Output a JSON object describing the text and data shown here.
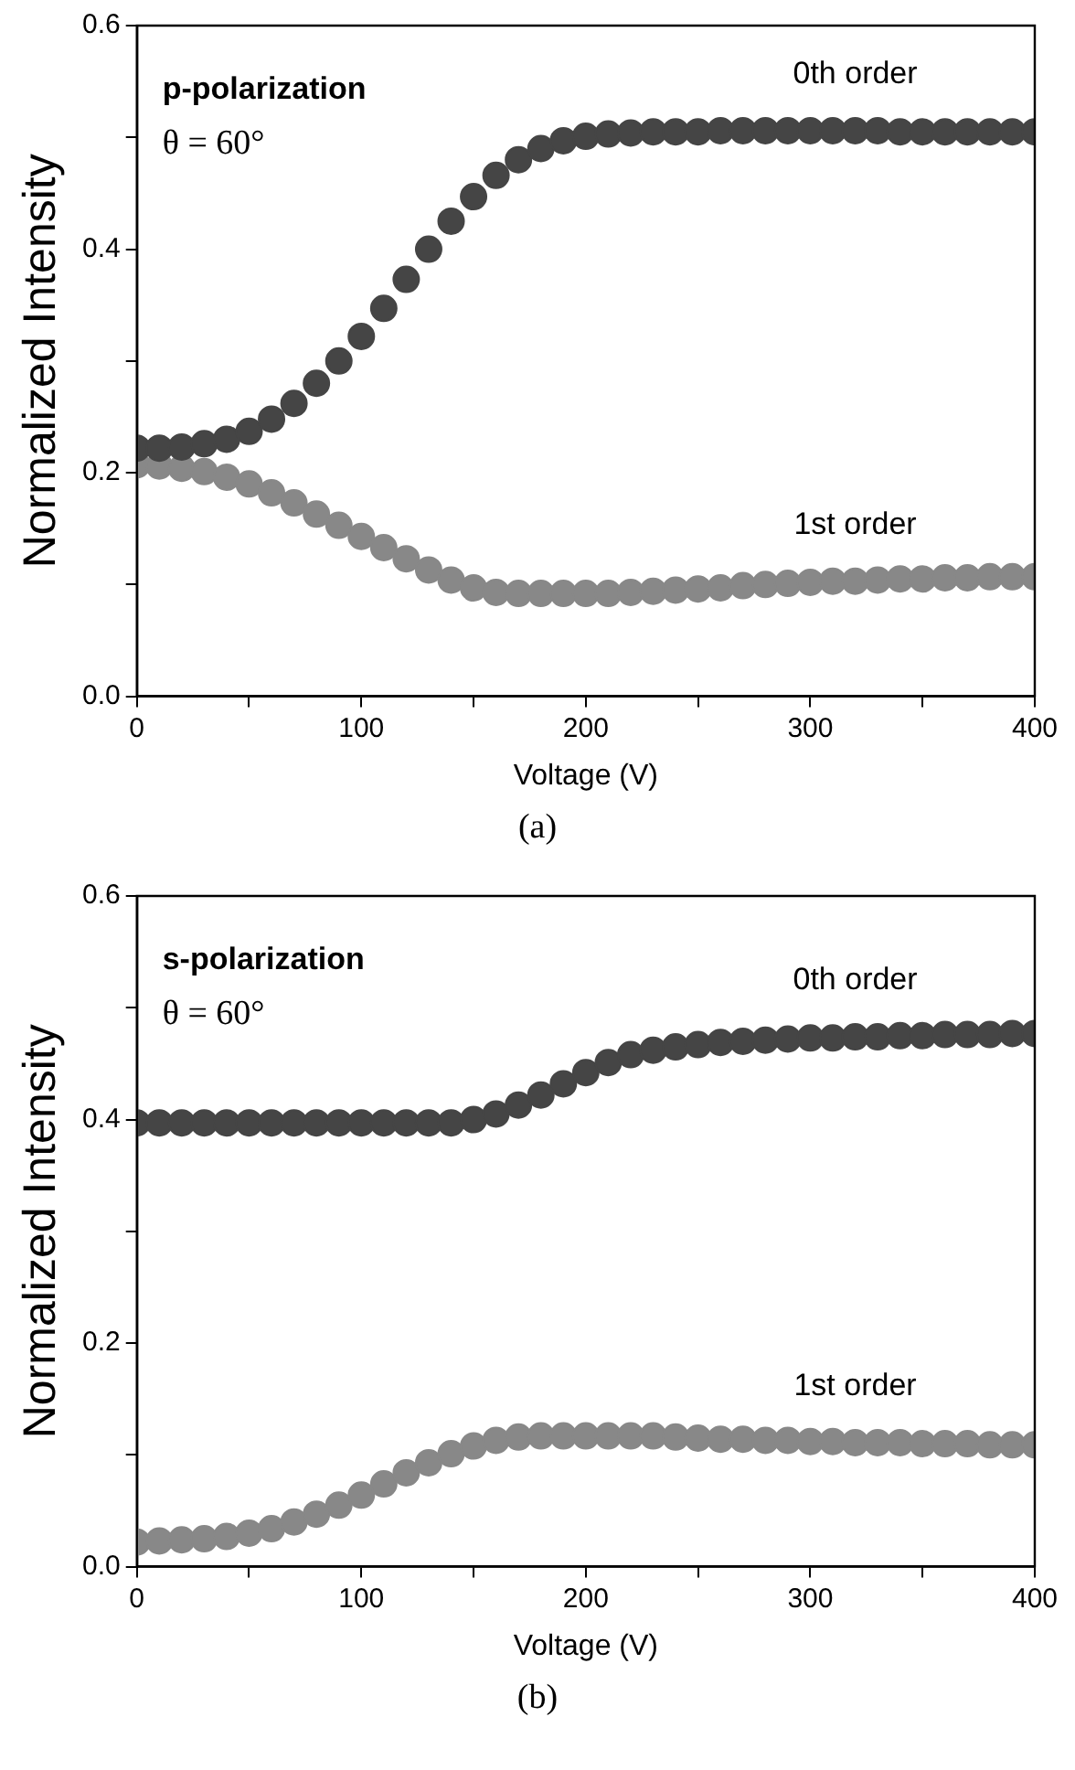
{
  "chart_data": [
    {
      "type": "scatter",
      "xlabel": "Voltage (V)",
      "ylabel": "Normalized Intensity",
      "annotations": [
        "p-polarization",
        "θ = 60°",
        "(a)"
      ],
      "marker": "circle",
      "grid": false,
      "legend": false,
      "xlim": [
        0,
        400
      ],
      "xticks": [
        0,
        {
          "value": 50,
          "label": null
        },
        100,
        {
          "value": 150,
          "label": null
        },
        200,
        {
          "value": 250,
          "label": null
        },
        300,
        {
          "value": 350,
          "label": null
        },
        400
      ],
      "ylim": [
        0,
        0.6
      ],
      "yticks": [
        {
          "value": 0,
          "label": "0.0"
        },
        {
          "value": 0.1,
          "label": null
        },
        0.2,
        {
          "value": 0.3,
          "label": null
        },
        0.4,
        {
          "value": 0.5,
          "label": null
        },
        0.6
      ],
      "x": [
        0,
        10,
        20,
        30,
        40,
        50,
        60,
        70,
        80,
        90,
        100,
        110,
        120,
        130,
        140,
        150,
        160,
        170,
        180,
        190,
        200,
        210,
        220,
        230,
        240,
        250,
        260,
        270,
        280,
        290,
        300,
        310,
        320,
        330,
        340,
        350,
        360,
        370,
        380,
        390,
        400
      ],
      "series": [
        {
          "name": "0th order",
          "color": "#454545",
          "values": [
            0.222,
            0.222,
            0.223,
            0.226,
            0.23,
            0.237,
            0.248,
            0.262,
            0.28,
            0.3,
            0.322,
            0.347,
            0.373,
            0.4,
            0.425,
            0.447,
            0.466,
            0.48,
            0.49,
            0.497,
            0.501,
            0.503,
            0.504,
            0.505,
            0.505,
            0.505,
            0.506,
            0.506,
            0.506,
            0.506,
            0.506,
            0.506,
            0.506,
            0.506,
            0.505,
            0.505,
            0.505,
            0.505,
            0.505,
            0.505,
            0.505
          ]
        },
        {
          "name": "1st order",
          "color": "#888888",
          "values": [
            0.207,
            0.206,
            0.204,
            0.201,
            0.196,
            0.19,
            0.182,
            0.173,
            0.163,
            0.153,
            0.143,
            0.133,
            0.123,
            0.113,
            0.104,
            0.097,
            0.093,
            0.092,
            0.092,
            0.092,
            0.092,
            0.092,
            0.093,
            0.094,
            0.095,
            0.096,
            0.097,
            0.099,
            0.1,
            0.101,
            0.102,
            0.103,
            0.103,
            0.104,
            0.105,
            0.105,
            0.106,
            0.106,
            0.107,
            0.107,
            0.107
          ]
        }
      ]
    },
    {
      "type": "scatter",
      "xlabel": "Voltage (V)",
      "ylabel": "Normalized Intensity",
      "annotations": [
        "s-polarization",
        "θ = 60°",
        "(b)"
      ],
      "marker": "circle",
      "grid": false,
      "legend": false,
      "xlim": [
        0,
        400
      ],
      "xticks": [
        0,
        {
          "value": 50,
          "label": null
        },
        100,
        {
          "value": 150,
          "label": null
        },
        200,
        {
          "value": 250,
          "label": null
        },
        300,
        {
          "value": 350,
          "label": null
        },
        400
      ],
      "ylim": [
        0,
        0.6
      ],
      "yticks": [
        {
          "value": 0,
          "label": "0.0"
        },
        {
          "value": 0.1,
          "label": null
        },
        0.2,
        {
          "value": 0.3,
          "label": null
        },
        0.4,
        {
          "value": 0.5,
          "label": null
        },
        0.6
      ],
      "x": [
        0,
        10,
        20,
        30,
        40,
        50,
        60,
        70,
        80,
        90,
        100,
        110,
        120,
        130,
        140,
        150,
        160,
        170,
        180,
        190,
        200,
        210,
        220,
        230,
        240,
        250,
        260,
        270,
        280,
        290,
        300,
        310,
        320,
        330,
        340,
        350,
        360,
        370,
        380,
        390,
        400
      ],
      "series": [
        {
          "name": "0th order",
          "color": "#454545",
          "values": [
            0.397,
            0.397,
            0.397,
            0.397,
            0.397,
            0.397,
            0.397,
            0.397,
            0.397,
            0.397,
            0.397,
            0.397,
            0.397,
            0.397,
            0.397,
            0.4,
            0.405,
            0.413,
            0.422,
            0.432,
            0.442,
            0.451,
            0.458,
            0.462,
            0.465,
            0.467,
            0.469,
            0.47,
            0.471,
            0.472,
            0.473,
            0.473,
            0.474,
            0.474,
            0.475,
            0.475,
            0.476,
            0.476,
            0.476,
            0.477,
            0.477
          ]
        },
        {
          "name": "1st order",
          "color": "#888888",
          "values": [
            0.022,
            0.023,
            0.024,
            0.025,
            0.027,
            0.03,
            0.034,
            0.04,
            0.047,
            0.055,
            0.064,
            0.074,
            0.084,
            0.093,
            0.101,
            0.108,
            0.113,
            0.116,
            0.117,
            0.117,
            0.117,
            0.117,
            0.117,
            0.117,
            0.116,
            0.115,
            0.114,
            0.114,
            0.113,
            0.113,
            0.112,
            0.112,
            0.111,
            0.111,
            0.111,
            0.11,
            0.11,
            0.11,
            0.109,
            0.109,
            0.109
          ]
        }
      ]
    }
  ]
}
